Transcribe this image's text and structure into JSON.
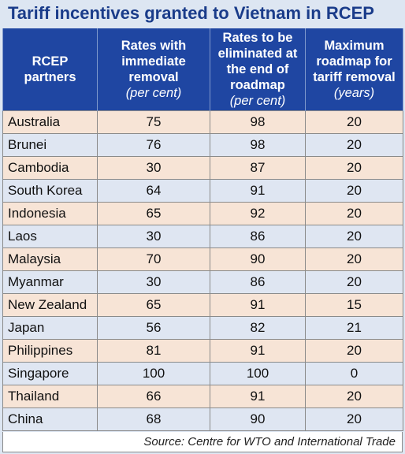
{
  "title": "Tariff incentives granted to Vietnam in RCEP",
  "headers": [
    {
      "label": "RCEP partners",
      "unit": ""
    },
    {
      "label": "Rates with immediate removal",
      "unit": "(per cent)"
    },
    {
      "label": "Rates to be eliminated at the end of roadmap",
      "unit": "(per cent)"
    },
    {
      "label": "Maximum roadmap for tariff removal",
      "unit": "(years)"
    }
  ],
  "rows": [
    {
      "country": "Australia",
      "immediate": "75",
      "end": "98",
      "years": "20"
    },
    {
      "country": "Brunei",
      "immediate": "76",
      "end": "98",
      "years": "20"
    },
    {
      "country": "Cambodia",
      "immediate": "30",
      "end": "87",
      "years": "20"
    },
    {
      "country": "South Korea",
      "immediate": "64",
      "end": "91",
      "years": "20"
    },
    {
      "country": "Indonesia",
      "immediate": "65",
      "end": "92",
      "years": "20"
    },
    {
      "country": "Laos",
      "immediate": "30",
      "end": "86",
      "years": "20"
    },
    {
      "country": "Malaysia",
      "immediate": "70",
      "end": "90",
      "years": "20"
    },
    {
      "country": "Myanmar",
      "immediate": "30",
      "end": "86",
      "years": "20"
    },
    {
      "country": "New Zealand",
      "immediate": "65",
      "end": "91",
      "years": "15"
    },
    {
      "country": "Japan",
      "immediate": "56",
      "end": "82",
      "years": "21"
    },
    {
      "country": "Philippines",
      "immediate": "81",
      "end": "91",
      "years": "20"
    },
    {
      "country": "Singapore",
      "immediate": "100",
      "end": "100",
      "years": "0"
    },
    {
      "country": "Thailand",
      "immediate": "66",
      "end": "91",
      "years": "20"
    },
    {
      "country": "China",
      "immediate": "68",
      "end": "90",
      "years": "20"
    }
  ],
  "source": "Source: Centre for WTO and International Trade",
  "colors": {
    "title": "#1a3c8a",
    "header_bg": "#1f46a2",
    "row_odd": "#f7e4d6",
    "row_even": "#dfe6f2",
    "background": "#dde6f2"
  }
}
